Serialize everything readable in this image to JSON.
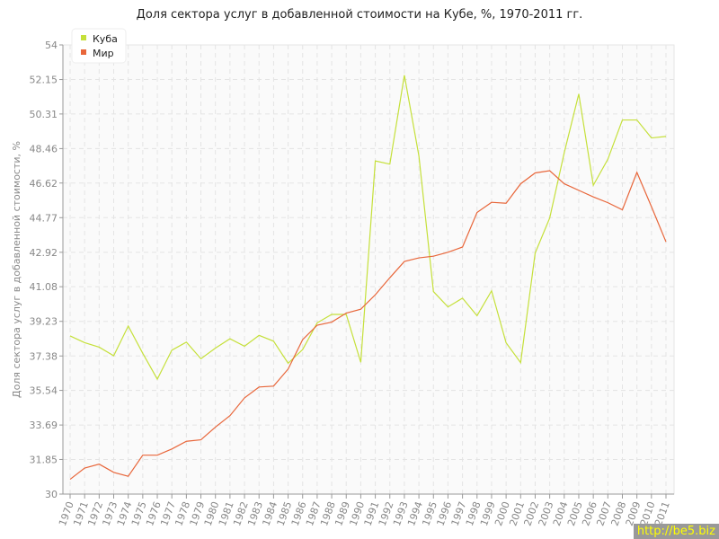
{
  "chart_data": {
    "type": "line",
    "title": "Доля сектора услуг в добавленной стоимости на Кубе, %, 1970-2011 гг.",
    "xlabel": "",
    "ylabel": "Доля сектора услуг в добавленной стоимости, %",
    "ylim": [
      30,
      54
    ],
    "yticks": [
      "30",
      "31.85",
      "33.69",
      "35.54",
      "37.38",
      "39.23",
      "41.08",
      "42.92",
      "44.77",
      "46.62",
      "48.46",
      "50.31",
      "52.15",
      "54"
    ],
    "grid": true,
    "legend": "top-left",
    "x": [
      1970,
      1971,
      1972,
      1973,
      1974,
      1975,
      1976,
      1977,
      1978,
      1979,
      1980,
      1981,
      1982,
      1983,
      1984,
      1985,
      1986,
      1987,
      1988,
      1989,
      1990,
      1991,
      1992,
      1993,
      1994,
      1995,
      1996,
      1997,
      1998,
      1999,
      2000,
      2001,
      2002,
      2003,
      2004,
      2005,
      2006,
      2007,
      2008,
      2009,
      2010,
      2011
    ],
    "series": [
      {
        "name": "Куба",
        "color": "#c5e03a",
        "values": [
          38.45,
          38.09,
          37.85,
          37.39,
          38.98,
          37.52,
          36.14,
          37.69,
          38.12,
          37.23,
          37.8,
          38.3,
          37.9,
          38.48,
          38.17,
          36.99,
          37.72,
          39.15,
          39.6,
          39.6,
          37.04,
          47.8,
          47.63,
          52.38,
          48.07,
          40.82,
          40.0,
          40.47,
          39.53,
          40.86,
          38.08,
          37.02,
          42.88,
          44.75,
          48.24,
          51.38,
          46.5,
          47.89,
          49.99,
          49.99,
          49.03,
          49.11
        ]
      },
      {
        "name": "Мир",
        "color": "#e8663a",
        "values": [
          30.79,
          31.39,
          31.6,
          31.16,
          30.95,
          32.08,
          32.08,
          32.41,
          32.82,
          32.9,
          33.58,
          34.19,
          35.14,
          35.72,
          35.77,
          36.68,
          38.25,
          39.02,
          39.19,
          39.67,
          39.88,
          40.65,
          41.56,
          42.43,
          42.62,
          42.71,
          42.92,
          43.2,
          45.05,
          45.59,
          45.54,
          46.58,
          47.16,
          47.28,
          46.58,
          46.23,
          45.88,
          45.57,
          45.19,
          47.19,
          45.36,
          43.48
        ]
      }
    ]
  },
  "watermark": "http://be5.biz"
}
